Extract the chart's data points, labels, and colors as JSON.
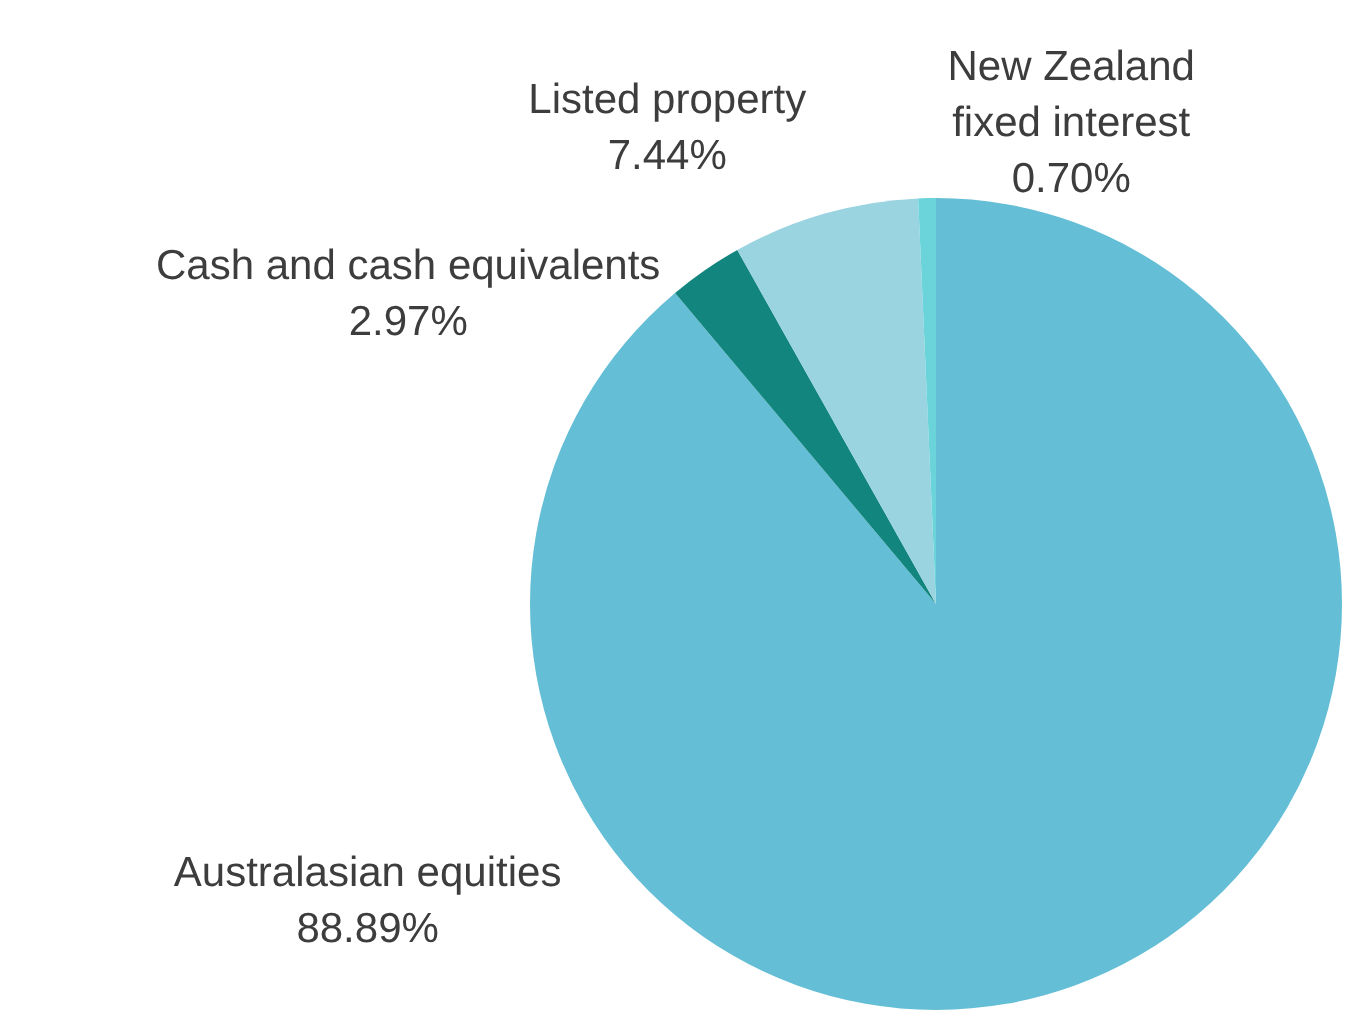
{
  "chart_data": {
    "type": "pie",
    "categories": [
      "Australasian equities",
      "Cash and cash equivalents",
      "Listed property",
      "New Zealand fixed interest"
    ],
    "values": [
      88.89,
      2.97,
      7.44,
      0.7
    ],
    "value_labels": [
      "88.89%",
      "2.97%",
      "7.44%",
      "0.70%"
    ],
    "colors": [
      "#64bed6",
      "#12867e",
      "#9ad4e1",
      "#6ad4da"
    ]
  }
}
